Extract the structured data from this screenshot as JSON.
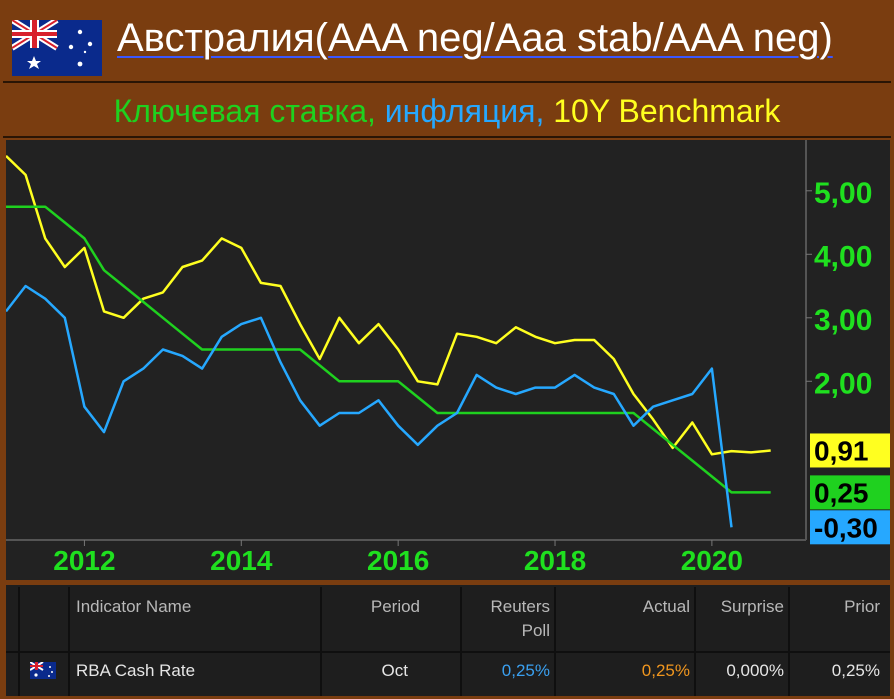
{
  "title": "Австралия(AAA neg/Aaa stab/AAA neg)",
  "subtitle": {
    "rate": "Ключевая ставка,",
    "inflation": "инфляция,",
    "benchmark": "10Y Benchmark"
  },
  "colors": {
    "background": "#7a3d10",
    "chart_bg": "#222222",
    "rate": "#1fd11f",
    "inflation": "#26a8ff",
    "benchmark": "#ffff20"
  },
  "chart_data": {
    "type": "line",
    "x_ticks": [
      "2012",
      "2014",
      "2016",
      "2018",
      "2020"
    ],
    "y_ticks": [
      "5,00",
      "4,00",
      "3,00",
      "2,00"
    ],
    "xlim": [
      2011.0,
      2021.2
    ],
    "ylim": [
      -0.5,
      5.8
    ],
    "grid": false,
    "end_labels": [
      "0,91",
      "0,25",
      "-0,30"
    ],
    "series": [
      {
        "key": "benchmark",
        "color": "#ffff20",
        "x": [
          2011.0,
          2011.25,
          2011.5,
          2011.75,
          2012.0,
          2012.25,
          2012.5,
          2012.75,
          2013.0,
          2013.25,
          2013.5,
          2013.75,
          2014.0,
          2014.25,
          2014.5,
          2014.75,
          2015.0,
          2015.25,
          2015.5,
          2015.75,
          2016.0,
          2016.25,
          2016.5,
          2016.75,
          2017.0,
          2017.25,
          2017.5,
          2017.75,
          2018.0,
          2018.25,
          2018.5,
          2018.75,
          2019.0,
          2019.25,
          2019.5,
          2019.75,
          2020.0,
          2020.25,
          2020.5,
          2020.75
        ],
        "values": [
          5.55,
          5.25,
          4.25,
          3.8,
          4.1,
          3.1,
          3.0,
          3.3,
          3.4,
          3.8,
          3.9,
          4.25,
          4.1,
          3.55,
          3.5,
          2.9,
          2.35,
          3.0,
          2.6,
          2.9,
          2.5,
          2.0,
          1.95,
          2.75,
          2.7,
          2.6,
          2.85,
          2.7,
          2.6,
          2.65,
          2.65,
          2.35,
          1.8,
          1.4,
          0.95,
          1.35,
          0.85,
          0.9,
          0.88,
          0.91
        ]
      },
      {
        "key": "rate",
        "color": "#1fd11f",
        "x": [
          2011.0,
          2011.25,
          2011.5,
          2011.75,
          2012.0,
          2012.25,
          2012.5,
          2012.75,
          2013.0,
          2013.25,
          2013.5,
          2013.75,
          2014.0,
          2014.25,
          2014.5,
          2014.75,
          2015.0,
          2015.25,
          2015.5,
          2015.75,
          2016.0,
          2016.25,
          2016.5,
          2016.75,
          2017.0,
          2017.25,
          2017.5,
          2017.75,
          2018.0,
          2018.25,
          2018.5,
          2018.75,
          2019.0,
          2019.25,
          2019.5,
          2019.75,
          2020.0,
          2020.25,
          2020.5,
          2020.75
        ],
        "values": [
          4.75,
          4.75,
          4.75,
          4.5,
          4.25,
          3.75,
          3.5,
          3.25,
          3.0,
          2.75,
          2.5,
          2.5,
          2.5,
          2.5,
          2.5,
          2.5,
          2.25,
          2.0,
          2.0,
          2.0,
          2.0,
          1.75,
          1.5,
          1.5,
          1.5,
          1.5,
          1.5,
          1.5,
          1.5,
          1.5,
          1.5,
          1.5,
          1.5,
          1.25,
          1.0,
          0.75,
          0.5,
          0.25,
          0.25,
          0.25
        ]
      },
      {
        "key": "inflation",
        "color": "#26a8ff",
        "x": [
          2011.0,
          2011.25,
          2011.5,
          2011.75,
          2012.0,
          2012.25,
          2012.5,
          2012.75,
          2013.0,
          2013.25,
          2013.5,
          2013.75,
          2014.0,
          2014.25,
          2014.5,
          2014.75,
          2015.0,
          2015.25,
          2015.5,
          2015.75,
          2016.0,
          2016.25,
          2016.5,
          2016.75,
          2017.0,
          2017.25,
          2017.5,
          2017.75,
          2018.0,
          2018.25,
          2018.5,
          2018.75,
          2019.0,
          2019.25,
          2019.5,
          2019.75,
          2020.0,
          2020.25
        ],
        "values": [
          3.1,
          3.5,
          3.3,
          3.0,
          1.6,
          1.2,
          2.0,
          2.2,
          2.5,
          2.4,
          2.2,
          2.7,
          2.9,
          3.0,
          2.3,
          1.7,
          1.3,
          1.5,
          1.5,
          1.7,
          1.3,
          1.0,
          1.3,
          1.5,
          2.1,
          1.9,
          1.8,
          1.9,
          1.9,
          2.1,
          1.9,
          1.8,
          1.3,
          1.6,
          1.7,
          1.8,
          2.2,
          -0.3
        ]
      }
    ]
  },
  "table": {
    "headers": {
      "name": "Indicator Name",
      "period": "Period",
      "poll_line1": "Reuters",
      "poll_line2": "Poll",
      "actual": "Actual",
      "surprise": "Surprise",
      "prior": "Prior"
    },
    "row": {
      "name": "RBA Cash Rate",
      "period": "Oct",
      "poll": "0,25%",
      "actual": "0,25%",
      "surprise": "0,000%",
      "prior": "0,25%"
    },
    "colors": {
      "poll": "#3aa0f0",
      "actual": "#f0961e"
    }
  }
}
